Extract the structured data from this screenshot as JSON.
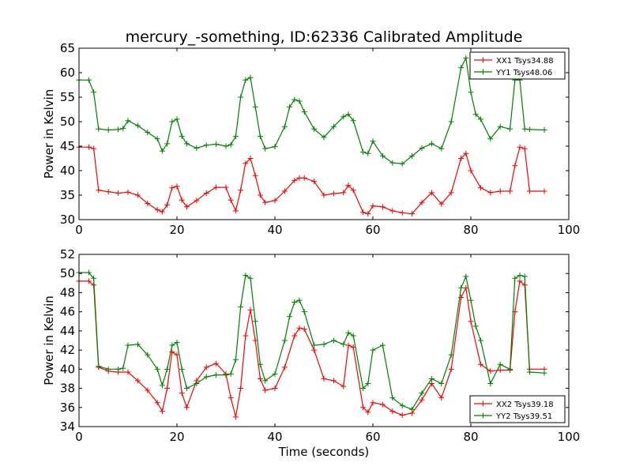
{
  "figure_title": "mercury_-something, ID:62336 Calibrated Amplitude",
  "colors": {
    "xx": "#ff0000",
    "yy": "#008000"
  },
  "chart_data": [
    {
      "type": "line",
      "title": "mercury_-something, ID:62336 Calibrated Amplitude",
      "xlabel": "",
      "ylabel": "Power in Kelvin",
      "xlim": [
        0,
        100
      ],
      "ylim": [
        30,
        65
      ],
      "xticks": [
        0,
        20,
        40,
        60,
        80,
        100
      ],
      "yticks": [
        30,
        35,
        40,
        45,
        50,
        55,
        60,
        65
      ],
      "legend": "top-right",
      "grid": false,
      "marker": "+",
      "series": [
        {
          "name": "XX1 Tsys34.88",
          "color": "#ff0000",
          "x": [
            0,
            2,
            3,
            4,
            6,
            8,
            10,
            12,
            14,
            16,
            17,
            18,
            19,
            20,
            21,
            22,
            24,
            26,
            28,
            30,
            31,
            32,
            33,
            34,
            35,
            36,
            37,
            38,
            40,
            42,
            44,
            45,
            46,
            48,
            50,
            52,
            54,
            55,
            56,
            58,
            59,
            60,
            62,
            64,
            66,
            68,
            70,
            72,
            74,
            76,
            78,
            79,
            80,
            82,
            84,
            86,
            88,
            89,
            90,
            91,
            92,
            95
          ],
          "y": [
            44.8,
            44.8,
            44.5,
            36.0,
            35.7,
            35.4,
            35.6,
            35.0,
            33.3,
            32.0,
            31.6,
            33.0,
            36.5,
            36.8,
            34.0,
            32.6,
            33.9,
            35.4,
            36.6,
            36.6,
            34.0,
            31.8,
            36.0,
            41.5,
            42.5,
            39.0,
            35.0,
            33.5,
            33.9,
            35.8,
            38.0,
            38.5,
            38.5,
            37.8,
            35.0,
            35.3,
            35.5,
            37.0,
            36.0,
            31.5,
            31.2,
            32.8,
            32.6,
            31.8,
            31.4,
            31.2,
            33.5,
            35.5,
            33.2,
            35.5,
            42.5,
            43.5,
            40.0,
            36.5,
            35.5,
            35.8,
            35.8,
            41.0,
            44.8,
            44.5,
            35.8,
            35.8
          ]
        },
        {
          "name": "YY1 Tsys48.06",
          "color": "#008000",
          "x": [
            0,
            2,
            3,
            4,
            6,
            8,
            9,
            10,
            12,
            14,
            16,
            17,
            18,
            19,
            20,
            21,
            22,
            24,
            26,
            28,
            30,
            31,
            32,
            33,
            34,
            35,
            36,
            37,
            38,
            40,
            42,
            43,
            44,
            45,
            46,
            48,
            50,
            52,
            54,
            55,
            56,
            58,
            59,
            60,
            62,
            64,
            66,
            68,
            70,
            72,
            74,
            76,
            78,
            79,
            80,
            81,
            82,
            84,
            86,
            88,
            89,
            90,
            91,
            92,
            95
          ],
          "y": [
            58.5,
            58.5,
            56.0,
            48.5,
            48.3,
            48.4,
            48.6,
            50.2,
            49.2,
            47.8,
            46.5,
            44.0,
            45.5,
            50.0,
            50.5,
            47.0,
            45.5,
            44.6,
            45.2,
            45.4,
            45.0,
            45.3,
            47.0,
            55.0,
            58.5,
            59.0,
            53.0,
            47.0,
            44.5,
            44.9,
            49.0,
            53.0,
            54.5,
            54.2,
            52.0,
            48.5,
            46.8,
            49.0,
            51.0,
            51.5,
            50.2,
            43.8,
            43.5,
            46.0,
            43.0,
            41.6,
            41.4,
            43.0,
            44.6,
            45.5,
            44.5,
            50.0,
            61.0,
            63.0,
            56.0,
            51.5,
            50.5,
            46.5,
            49.0,
            48.5,
            58.5,
            58.5,
            48.5,
            48.4,
            48.3
          ]
        }
      ]
    },
    {
      "type": "line",
      "title": "",
      "xlabel": "Time (seconds)",
      "ylabel": "Power in Kelvin",
      "xlim": [
        0,
        100
      ],
      "ylim": [
        34,
        52
      ],
      "xticks": [
        0,
        20,
        40,
        60,
        80,
        100
      ],
      "yticks": [
        34,
        36,
        38,
        40,
        42,
        44,
        46,
        48,
        50,
        52
      ],
      "legend": "bottom-right",
      "grid": false,
      "marker": "+",
      "series": [
        {
          "name": "XX2 Tsys39.18",
          "color": "#ff0000",
          "x": [
            0,
            2,
            3,
            4,
            6,
            8,
            10,
            12,
            14,
            16,
            17,
            18,
            19,
            20,
            21,
            22,
            24,
            26,
            28,
            30,
            31,
            32,
            33,
            34,
            35,
            36,
            37,
            38,
            40,
            42,
            44,
            45,
            46,
            48,
            50,
            52,
            54,
            55,
            56,
            58,
            59,
            60,
            62,
            64,
            66,
            68,
            70,
            72,
            74,
            76,
            78,
            79,
            80,
            82,
            84,
            86,
            88,
            89,
            90,
            91,
            92,
            95
          ],
          "y": [
            49.2,
            49.2,
            48.8,
            40.2,
            39.8,
            39.7,
            39.7,
            38.8,
            37.8,
            36.5,
            35.6,
            38.0,
            41.8,
            41.5,
            37.5,
            36.0,
            38.8,
            40.2,
            40.6,
            39.5,
            37.0,
            35.0,
            38.0,
            43.5,
            46.2,
            43.0,
            39.0,
            37.8,
            38.0,
            40.2,
            43.5,
            44.3,
            44.2,
            42.0,
            39.0,
            38.8,
            38.2,
            42.5,
            42.3,
            36.0,
            35.5,
            36.5,
            36.3,
            35.6,
            35.2,
            35.4,
            36.8,
            38.5,
            37.0,
            40.0,
            47.5,
            48.5,
            45.0,
            40.5,
            39.8,
            39.9,
            39.9,
            46.0,
            49.2,
            48.8,
            40.0,
            40.0
          ]
        },
        {
          "name": "YY2 Tsys39.51",
          "color": "#008000",
          "x": [
            0,
            2,
            3,
            4,
            6,
            8,
            9,
            10,
            12,
            14,
            16,
            17,
            18,
            19,
            20,
            21,
            22,
            24,
            26,
            28,
            30,
            31,
            32,
            33,
            34,
            35,
            36,
            37,
            38,
            40,
            42,
            43,
            44,
            45,
            46,
            48,
            50,
            52,
            54,
            55,
            56,
            58,
            59,
            60,
            62,
            64,
            66,
            68,
            70,
            72,
            74,
            76,
            78,
            79,
            80,
            81,
            82,
            84,
            86,
            88,
            89,
            90,
            91,
            92,
            95
          ],
          "y": [
            50.1,
            50.1,
            49.5,
            40.3,
            40.0,
            40.0,
            40.1,
            42.5,
            42.6,
            41.5,
            40.0,
            38.3,
            40.0,
            42.5,
            42.8,
            40.0,
            38.0,
            38.5,
            39.2,
            39.4,
            39.4,
            39.5,
            41.0,
            46.5,
            49.8,
            49.5,
            45.0,
            40.5,
            38.8,
            39.5,
            43.0,
            45.5,
            47.0,
            47.2,
            46.0,
            42.5,
            42.6,
            43.0,
            42.6,
            43.8,
            43.5,
            38.0,
            38.5,
            42.0,
            42.5,
            37.0,
            36.2,
            35.8,
            37.5,
            39.0,
            38.5,
            41.5,
            48.5,
            49.7,
            47.2,
            44.5,
            43.0,
            38.5,
            40.5,
            40.0,
            49.5,
            49.8,
            49.7,
            39.7,
            39.6
          ]
        }
      ]
    }
  ]
}
